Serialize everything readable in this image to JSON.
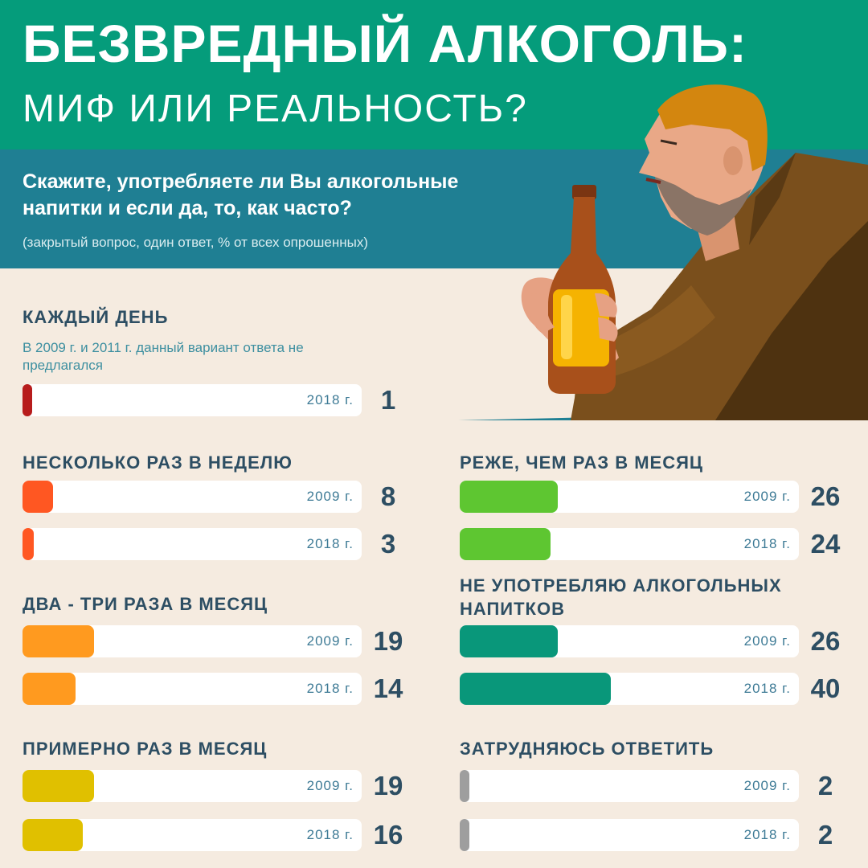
{
  "header": {
    "title": "БЕЗВРЕДНЫЙ АЛКОГОЛЬ:",
    "subtitle": "МИФ ИЛИ РЕАЛЬНОСТЬ?"
  },
  "question": {
    "text": "Скажите, употребляете ли Вы алкогольные напитки и если да, то, как часто?",
    "note": "(закрытый вопрос, один ответ, % от всех опрошенных)"
  },
  "colors": {
    "header_bg": "#059c7b",
    "question_bg": "#1f7f93",
    "page_bg": "#f5ebe0"
  },
  "chart_data": {
    "type": "bar",
    "unit": "%",
    "xlim": [
      0,
      100
    ],
    "groups": [
      {
        "label": "КАЖДЫЙ ДЕНЬ",
        "note": "В 2009 г. и 2011 г. данный вариант ответа не предлагался",
        "color": "#b71c1c",
        "bars": [
          {
            "year": "2018 г.",
            "value": 1
          }
        ]
      },
      {
        "label": "НЕСКОЛЬКО РАЗ В НЕДЕЛЮ",
        "color": "#ff5722",
        "bars": [
          {
            "year": "2009 г.",
            "value": 8
          },
          {
            "year": "2018 г.",
            "value": 3
          }
        ]
      },
      {
        "label": "ДВА - ТРИ РАЗА В МЕСЯЦ",
        "color": "#ff9a1f",
        "bars": [
          {
            "year": "2009 г.",
            "value": 19
          },
          {
            "year": "2018 г.",
            "value": 14
          }
        ]
      },
      {
        "label": "ПРИМЕРНО РАЗ В МЕСЯЦ",
        "color": "#e0c000",
        "bars": [
          {
            "year": "2009 г.",
            "value": 19
          },
          {
            "year": "2018 г.",
            "value": 16
          }
        ]
      },
      {
        "label": "РЕЖЕ, ЧЕМ РАЗ В МЕСЯЦ",
        "color": "#5ec631",
        "bars": [
          {
            "year": "2009 г.",
            "value": 26
          },
          {
            "year": "2018 г.",
            "value": 24
          }
        ]
      },
      {
        "label": "НЕ УПОТРЕБЛЯЮ АЛКОГОЛЬНЫХ НАПИТКОВ",
        "color": "#09977a",
        "bars": [
          {
            "year": "2009 г.",
            "value": 26
          },
          {
            "year": "2018 г.",
            "value": 40
          }
        ]
      },
      {
        "label": "ЗАТРУДНЯЮСЬ ОТВЕТИТЬ",
        "color": "#9e9e9e",
        "bars": [
          {
            "year": "2009 г.",
            "value": 2
          },
          {
            "year": "2018 г.",
            "value": 2
          }
        ]
      }
    ]
  }
}
